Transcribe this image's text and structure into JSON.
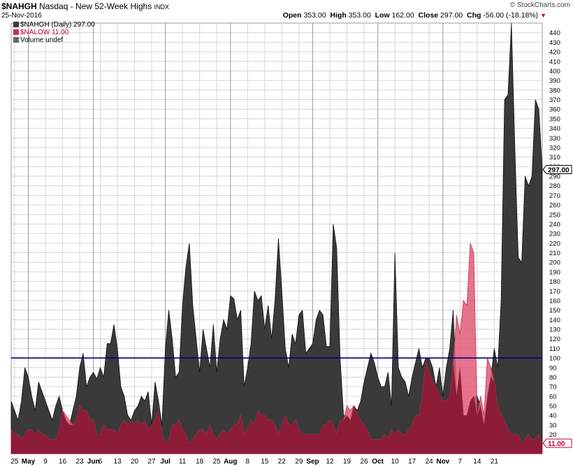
{
  "header": {
    "symbol": "$NAHGH",
    "description": "Nasdaq - New 52-Week Highs",
    "exchange": "INDX",
    "date": "25-Nov-2016",
    "copyright": "© StockCharts.com",
    "open_label": "Open",
    "open": "353.00",
    "high_label": "High",
    "high": "353.00",
    "low_label": "Low",
    "low": "162.00",
    "close_label": "Close",
    "close": "297.00",
    "chg_label": "Chg",
    "chg": "-56.00 (-18.18%)",
    "chg_icon": "down-triangle-icon"
  },
  "legend": {
    "series1": "$NAHGH (Daily) 297.00",
    "series2": "$NALOW 11.00",
    "series3": "Volume undef"
  },
  "colors": {
    "highs_fill": "#3a3a3a",
    "lows_fill": "#e05a78",
    "overlap_fill": "#8c1c38",
    "reference_line": "#000080",
    "grid": "#d6d6d6"
  },
  "chart_data": {
    "type": "area",
    "ylim": [
      0,
      450
    ],
    "yticks": [
      20,
      30,
      40,
      50,
      60,
      70,
      80,
      90,
      100,
      110,
      120,
      130,
      140,
      150,
      160,
      170,
      180,
      190,
      200,
      210,
      220,
      230,
      240,
      250,
      260,
      270,
      280,
      290,
      300,
      310,
      320,
      330,
      340,
      350,
      360,
      370,
      380,
      390,
      400,
      410,
      420,
      430,
      440
    ],
    "xticks": [
      {
        "label": "25",
        "i": 1,
        "month": false
      },
      {
        "label": "May",
        "i": 5,
        "month": true
      },
      {
        "label": "9",
        "i": 10,
        "month": false
      },
      {
        "label": "16",
        "i": 15,
        "month": false
      },
      {
        "label": "23",
        "i": 20,
        "month": false
      },
      {
        "label": "Jun",
        "i": 24,
        "month": true
      },
      {
        "label": "6",
        "i": 26,
        "month": false
      },
      {
        "label": "13",
        "i": 31,
        "month": false
      },
      {
        "label": "20",
        "i": 36,
        "month": false
      },
      {
        "label": "27",
        "i": 41,
        "month": false
      },
      {
        "label": "Jul",
        "i": 45,
        "month": true
      },
      {
        "label": "11",
        "i": 50,
        "month": false
      },
      {
        "label": "18",
        "i": 55,
        "month": false
      },
      {
        "label": "25",
        "i": 60,
        "month": false
      },
      {
        "label": "Aug",
        "i": 64,
        "month": true
      },
      {
        "label": "8",
        "i": 69,
        "month": false
      },
      {
        "label": "15",
        "i": 74,
        "month": false
      },
      {
        "label": "22",
        "i": 79,
        "month": false
      },
      {
        "label": "29",
        "i": 84,
        "month": false
      },
      {
        "label": "Sep",
        "i": 88,
        "month": true
      },
      {
        "label": "12",
        "i": 93,
        "month": false
      },
      {
        "label": "19",
        "i": 98,
        "month": false
      },
      {
        "label": "26",
        "i": 103,
        "month": false
      },
      {
        "label": "Oct",
        "i": 107,
        "month": true
      },
      {
        "label": "10",
        "i": 112,
        "month": false
      },
      {
        "label": "17",
        "i": 117,
        "month": false
      },
      {
        "label": "24",
        "i": 122,
        "month": false
      },
      {
        "label": "Nov",
        "i": 126,
        "month": true
      },
      {
        "label": "7",
        "i": 131,
        "month": false
      },
      {
        "label": "14",
        "i": 136,
        "month": false
      },
      {
        "label": "21",
        "i": 141,
        "month": false
      }
    ],
    "reference_value": 100,
    "series": [
      {
        "name": "$NAHGH (Daily)",
        "last_label": "297.00",
        "values": [
          55,
          45,
          35,
          55,
          90,
          80,
          60,
          45,
          75,
          65,
          55,
          45,
          35,
          50,
          60,
          45,
          35,
          30,
          45,
          60,
          90,
          105,
          70,
          80,
          85,
          78,
          90,
          80,
          115,
          115,
          135,
          110,
          70,
          60,
          40,
          35,
          45,
          50,
          60,
          55,
          65,
          30,
          75,
          55,
          30,
          110,
          150,
          120,
          80,
          85,
          155,
          195,
          220,
          155,
          120,
          85,
          130,
          110,
          90,
          135,
          85,
          120,
          140,
          130,
          165,
          162,
          140,
          150,
          70,
          90,
          115,
          170,
          160,
          165,
          130,
          155,
          120,
          160,
          225,
          170,
          110,
          90,
          125,
          115,
          145,
          150,
          105,
          110,
          115,
          140,
          150,
          145,
          112,
          112,
          240,
          215,
          100,
          40,
          40,
          35,
          50,
          45,
          55,
          75,
          90,
          105,
          95,
          80,
          70,
          70,
          85,
          50,
          210,
          90,
          80,
          75,
          60,
          80,
          95,
          110,
          90,
          100,
          100,
          90,
          70,
          90,
          60,
          90,
          110,
          150,
          60,
          90,
          40,
          40,
          55,
          60,
          60,
          50,
          30,
          60,
          80,
          110,
          90,
          160,
          370,
          375,
          450,
          320,
          205,
          200,
          290,
          280,
          290,
          370,
          360,
          297
        ]
      },
      {
        "name": "$NALOW",
        "last_label": "11.00",
        "values": [
          25,
          20,
          20,
          15,
          20,
          25,
          25,
          20,
          25,
          20,
          20,
          15,
          15,
          15,
          25,
          45,
          40,
          35,
          30,
          35,
          50,
          45,
          45,
          35,
          35,
          20,
          20,
          30,
          25,
          25,
          25,
          20,
          30,
          35,
          30,
          35,
          30,
          35,
          30,
          35,
          25,
          30,
          35,
          45,
          20,
          10,
          15,
          30,
          30,
          35,
          25,
          20,
          10,
          15,
          20,
          25,
          25,
          20,
          30,
          20,
          15,
          20,
          25,
          20,
          25,
          30,
          30,
          40,
          20,
          25,
          35,
          30,
          45,
          40,
          40,
          35,
          35,
          30,
          20,
          30,
          40,
          30,
          30,
          35,
          25,
          20,
          20,
          20,
          20,
          20,
          20,
          30,
          30,
          35,
          30,
          20,
          35,
          35,
          50,
          45,
          50,
          40,
          35,
          30,
          25,
          15,
          15,
          15,
          15,
          20,
          15,
          25,
          20,
          25,
          20,
          20,
          25,
          30,
          40,
          40,
          60,
          95,
          85,
          75,
          70,
          60,
          55,
          55,
          60,
          95,
          145,
          125,
          160,
          155,
          220,
          210,
          40,
          60,
          40,
          100,
          90,
          75,
          50,
          40,
          35,
          25,
          20,
          20,
          20,
          10,
          15,
          20,
          15,
          15,
          20,
          11
        ]
      }
    ]
  }
}
